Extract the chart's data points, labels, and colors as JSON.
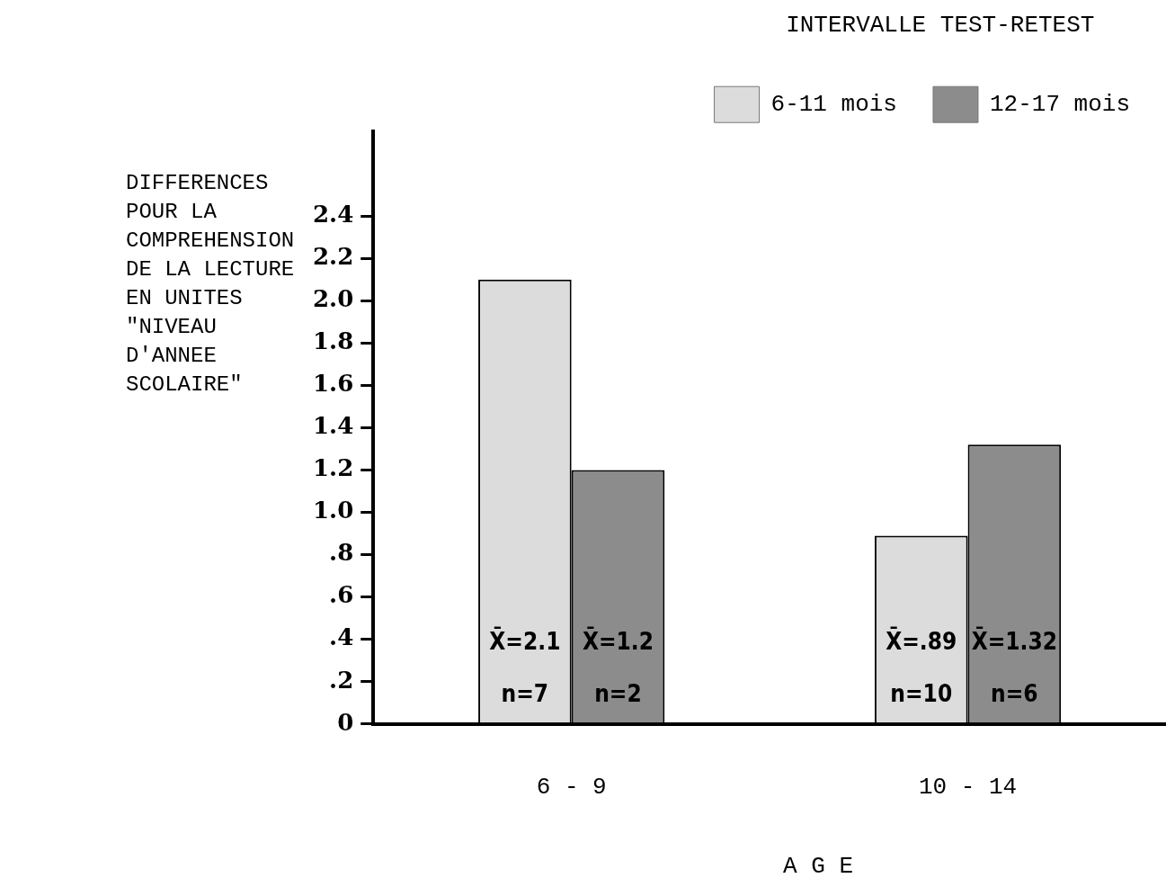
{
  "chart_data": {
    "type": "bar",
    "xlabel": "A G E",
    "ylabel": "DIFFERENCES POUR LA COMPREHENSION DE LA LECTURE EN UNITES \"NIVEAU D'ANNEE SCOLAIRE\"",
    "legend_title": "INTERVALLE TEST-RETEST",
    "legend": "top right",
    "grid": false,
    "categories": [
      "6 - 9",
      "10 - 14"
    ],
    "series": [
      {
        "name": "6-11 mois",
        "color": "#dcdcdc",
        "values": [
          2.1,
          0.89
        ],
        "value_labels": [
          "X̄=2.1\nn=7",
          "X̄=.89\nn=10"
        ]
      },
      {
        "name": "12-17 mois",
        "color": "#8c8c8c",
        "values": [
          1.2,
          1.32
        ],
        "value_labels": [
          "X̄=1.2\nn=2",
          "X̄=1.32\nn=6"
        ]
      }
    ],
    "ylim": [
      0,
      2.8
    ],
    "yticks": [
      {
        "value": 0,
        "label": "0"
      },
      {
        "value": 0.2,
        "label": ".2"
      },
      {
        "value": 0.4,
        "label": ".4"
      },
      {
        "value": 0.6,
        "label": ".6"
      },
      {
        "value": 0.8,
        "label": ".8"
      },
      {
        "value": 1,
        "label": "1.0"
      },
      1.2,
      1.4,
      1.6,
      1.8,
      {
        "value": 2,
        "label": "2.0"
      },
      2.2,
      2.4
    ]
  }
}
